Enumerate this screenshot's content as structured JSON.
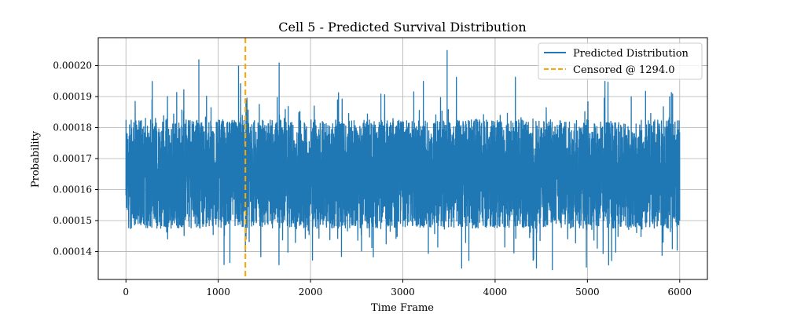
{
  "chart_data": {
    "type": "line",
    "title": "Cell 5 - Predicted Survival Distribution",
    "xlabel": "Time Frame",
    "ylabel": "Probability",
    "xlim": [
      -300,
      6300
    ],
    "ylim": [
      0.000131,
      0.000209
    ],
    "x_ticks": [
      0,
      1000,
      2000,
      3000,
      4000,
      5000,
      6000
    ],
    "x_tick_labels": [
      "0",
      "1000",
      "2000",
      "3000",
      "4000",
      "5000",
      "6000"
    ],
    "y_ticks": [
      0.00014,
      0.00015,
      0.00016,
      0.00017,
      0.00018,
      0.00019,
      0.0002
    ],
    "y_tick_labels": [
      "0.00014",
      "0.00015",
      "0.00016",
      "0.00017",
      "0.00018",
      "0.00019",
      "0.00020"
    ],
    "grid": true,
    "legend_position": "top-right",
    "series": [
      {
        "name": "Predicted Distribution",
        "color": "#1f77b4",
        "x_range": [
          0,
          6000
        ],
        "n_points": 6000,
        "center": 0.000165,
        "typical_range": [
          0.000148,
          0.000183
        ],
        "min": 0.000134,
        "max": 0.000205,
        "spikes": [
          [
            790,
            0.000202
          ],
          [
            1220,
            0.0002
          ],
          [
            1660,
            0.000201
          ],
          [
            3480,
            0.000205
          ],
          [
            4620,
            0.000134
          ]
        ]
      }
    ],
    "vlines": [
      {
        "name": "Censored @ 1294.0",
        "x": 1294.0,
        "color": "#ffa500",
        "style": "dashed"
      }
    ]
  }
}
